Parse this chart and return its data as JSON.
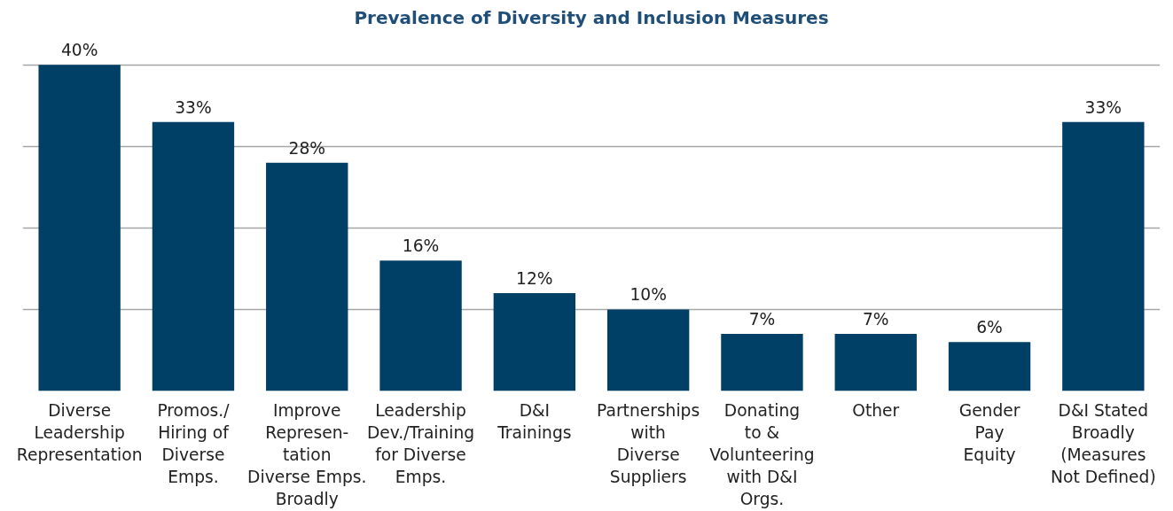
{
  "chart_data": {
    "type": "bar",
    "title": "Prevalence of Diversity and Inclusion Measures",
    "categories": [
      "Diverse\nLeadership\nRepresentation",
      "Promos./\nHiring of\nDiverse\nEmps.",
      "Improve\nRepresen-\ntation\nDiverse Emps.\nBroadly",
      "Leadership\nDev./Training\nfor Diverse\nEmps.",
      "D&I\nTrainings",
      "Partnerships\nwith\nDiverse\nSuppliers",
      "Donating\nto &\nVolunteering\nwith D&I\nOrgs.",
      "Other",
      "Gender\nPay\nEquity",
      "D&I Stated\nBroadly\n(Measures\nNot Defined)"
    ],
    "values": [
      40,
      33,
      28,
      16,
      12,
      10,
      7,
      7,
      6,
      33
    ],
    "value_labels": [
      "40%",
      "33%",
      "28%",
      "16%",
      "12%",
      "10%",
      "7%",
      "7%",
      "6%",
      "33%"
    ],
    "color": "#003f66",
    "grid": "y",
    "tick_labels": "x"
  }
}
